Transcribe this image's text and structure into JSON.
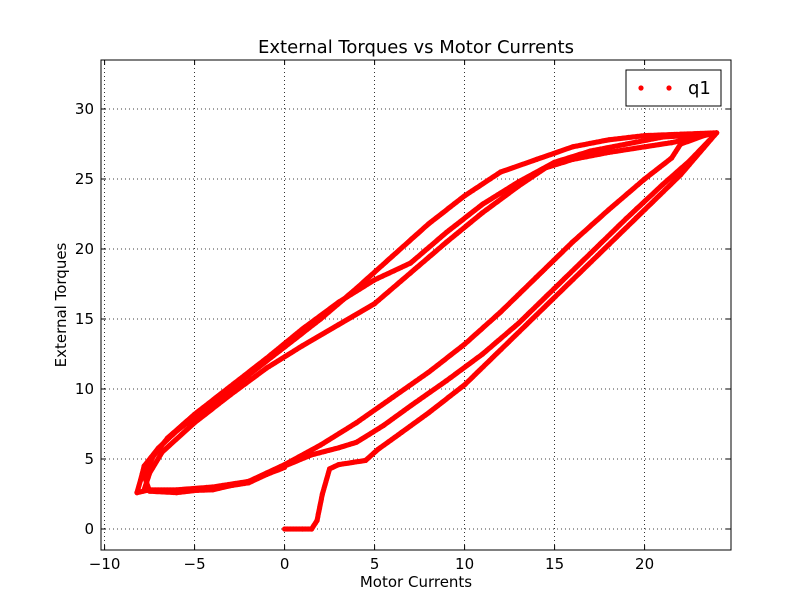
{
  "chart_data": {
    "type": "scatter",
    "title": "External Torques vs Motor Currents",
    "xlabel": "Motor Currents",
    "ylabel": "External Torques",
    "xlim": [
      -10.2,
      24.8
    ],
    "ylim": [
      -1.5,
      33.5
    ],
    "xticks": [
      -10,
      -5,
      0,
      5,
      10,
      15,
      20
    ],
    "xtick_labels": [
      "−10",
      "−5",
      "0",
      "5",
      "10",
      "15",
      "20"
    ],
    "yticks": [
      0,
      5,
      10,
      15,
      20,
      25,
      30
    ],
    "ytick_labels": [
      "0",
      "5",
      "10",
      "15",
      "20",
      "25",
      "30"
    ],
    "grid": true,
    "legend": {
      "placement": "top-right",
      "entries": [
        "q1"
      ]
    },
    "series": [
      {
        "name": "q1",
        "color": "#ff0000",
        "marker": "dot",
        "path_segments": [
          [
            [
              0,
              0
            ],
            [
              1,
              0
            ],
            [
              1.5,
              0
            ],
            [
              1.8,
              0.6
            ],
            [
              2.1,
              2.5
            ],
            [
              2.5,
              4.3
            ],
            [
              3,
              4.6
            ],
            [
              4.5,
              4.9
            ],
            [
              5.2,
              5.7
            ],
            [
              6.5,
              6.9
            ],
            [
              8,
              8.3
            ],
            [
              10,
              10.3
            ],
            [
              12,
              12.8
            ],
            [
              14,
              15.3
            ],
            [
              16,
              17.8
            ],
            [
              18,
              20.3
            ],
            [
              20,
              22.8
            ],
            [
              22,
              25.3
            ],
            [
              24,
              28.3
            ]
          ],
          [
            [
              24,
              28.3
            ],
            [
              22,
              28.2
            ],
            [
              20,
              28.1
            ],
            [
              18,
              27.8
            ],
            [
              16,
              27.3
            ],
            [
              14,
              26.4
            ],
            [
              12,
              25.5
            ],
            [
              10,
              23.8
            ],
            [
              8,
              21.8
            ],
            [
              6,
              19.5
            ],
            [
              4,
              17.2
            ],
            [
              2,
              15
            ],
            [
              0,
              13
            ],
            [
              -2,
              11
            ],
            [
              -4,
              9
            ],
            [
              -6,
              7
            ],
            [
              -7,
              5.8
            ],
            [
              -7.8,
              4.5
            ],
            [
              -8,
              3.5
            ],
            [
              -8.2,
              2.6
            ]
          ],
          [
            [
              -8.2,
              2.6
            ],
            [
              -7.5,
              2.8
            ],
            [
              -6,
              2.8
            ],
            [
              -4,
              3
            ],
            [
              -2,
              3.4
            ],
            [
              -1,
              4
            ],
            [
              0,
              4.6
            ],
            [
              2,
              6
            ],
            [
              4,
              7.6
            ],
            [
              6,
              9.4
            ],
            [
              8,
              11.2
            ],
            [
              10,
              13.2
            ],
            [
              12,
              15.5
            ],
            [
              14,
              18
            ],
            [
              16,
              20.5
            ],
            [
              18,
              22.8
            ],
            [
              20,
              25
            ],
            [
              21.5,
              26.5
            ],
            [
              22,
              27.5
            ],
            [
              23.5,
              28.2
            ]
          ],
          [
            [
              23.5,
              28.2
            ],
            [
              21,
              28
            ],
            [
              19,
              27.5
            ],
            [
              17,
              27
            ],
            [
              15,
              26.2
            ],
            [
              13,
              24.8
            ],
            [
              11,
              23.2
            ],
            [
              9,
              21.2
            ],
            [
              7,
              19
            ],
            [
              5,
              17.8
            ],
            [
              3,
              16.2
            ],
            [
              1,
              14.3
            ],
            [
              -1,
              12.2
            ],
            [
              -3,
              10.2
            ],
            [
              -5,
              8.2
            ],
            [
              -6.5,
              6.5
            ],
            [
              -7.3,
              5.2
            ],
            [
              -7.8,
              3.8
            ],
            [
              -7.5,
              2.7
            ]
          ],
          [
            [
              -7.5,
              2.7
            ],
            [
              -6,
              2.6
            ],
            [
              -4,
              2.9
            ],
            [
              -2,
              3.3
            ],
            [
              -1,
              3.9
            ],
            [
              0,
              4.5
            ],
            [
              1.5,
              5.3
            ],
            [
              3,
              5.8
            ],
            [
              4,
              6.2
            ],
            [
              5.5,
              7.4
            ],
            [
              7,
              8.8
            ],
            [
              9,
              10.6
            ],
            [
              11,
              12.5
            ],
            [
              13,
              14.7
            ],
            [
              15,
              17.2
            ],
            [
              17,
              19.7
            ],
            [
              19,
              22.2
            ],
            [
              21,
              24.6
            ],
            [
              22.5,
              26.3
            ],
            [
              24,
              28.3
            ]
          ],
          [
            [
              24,
              28.3
            ],
            [
              21.5,
              27.6
            ],
            [
              20,
              27.3
            ],
            [
              18,
              26.9
            ],
            [
              16,
              26.4
            ],
            [
              14.5,
              25.8
            ],
            [
              13,
              24.5
            ],
            [
              11,
              22.6
            ],
            [
              9,
              20.5
            ],
            [
              7,
              18.3
            ],
            [
              5,
              16.1
            ],
            [
              3,
              14.6
            ],
            [
              1,
              13.1
            ],
            [
              -1,
              11.5
            ],
            [
              -3,
              9.6
            ],
            [
              -5,
              7.6
            ],
            [
              -6.8,
              5.5
            ],
            [
              -7.5,
              4
            ],
            [
              -7.8,
              2.8
            ],
            [
              -6.5,
              2.7
            ],
            [
              -4,
              2.8
            ],
            [
              -2,
              3.4
            ],
            [
              0,
              4.4
            ]
          ]
        ]
      }
    ]
  }
}
